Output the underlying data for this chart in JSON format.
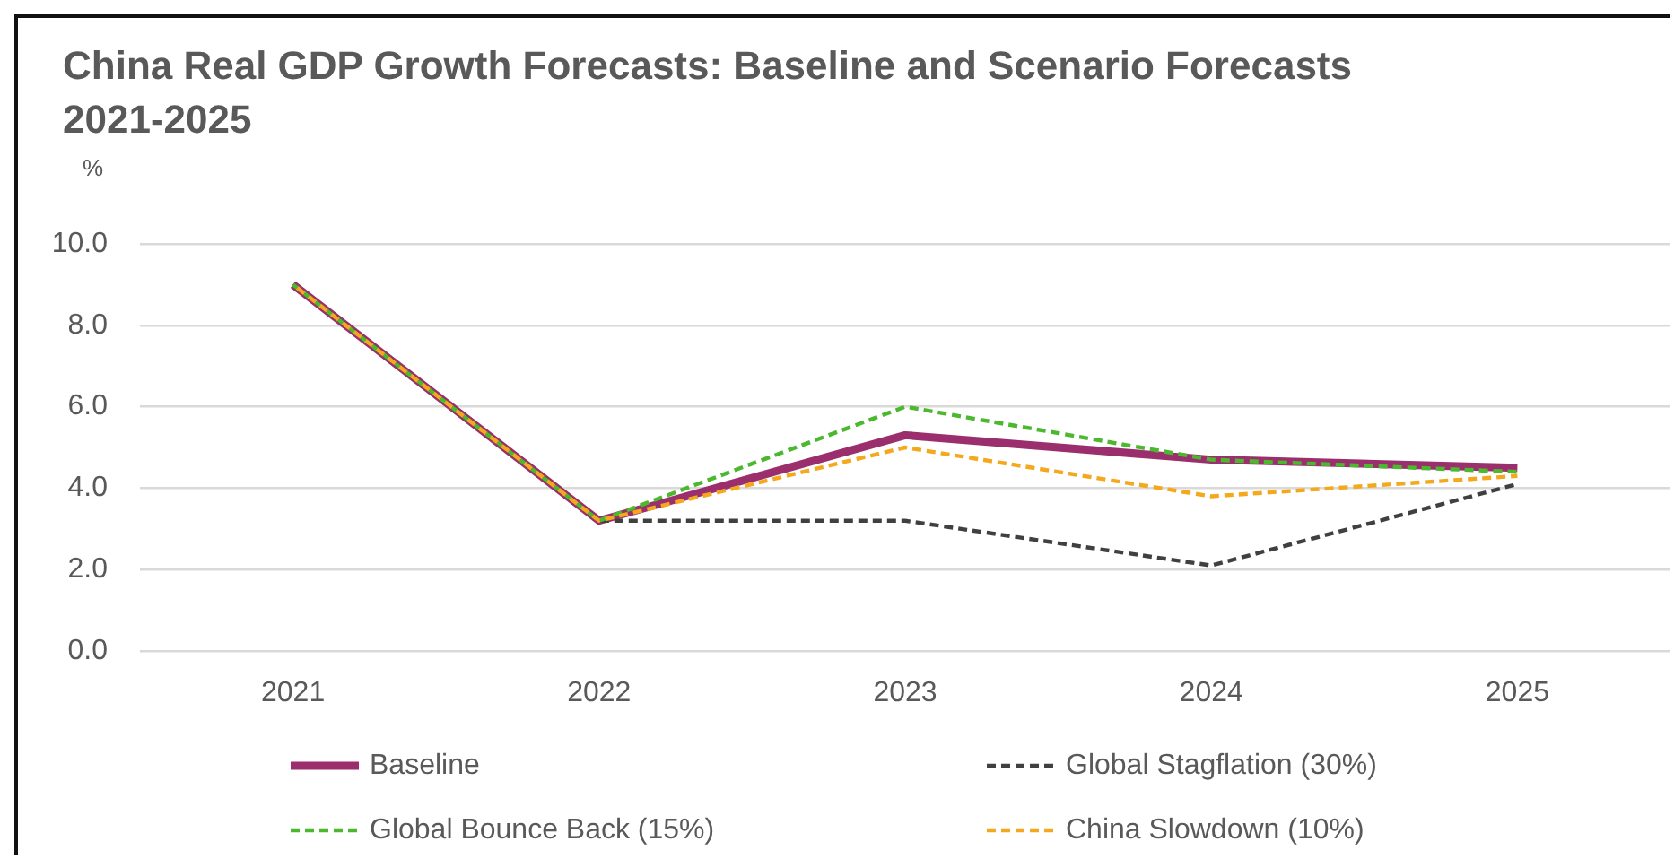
{
  "chart_data": {
    "type": "line",
    "title": "China Real GDP Growth Forecasts: Baseline and Scenario Forecasts 2021-2025",
    "ylabel": "%",
    "categories": [
      "2021",
      "2022",
      "2023",
      "2024",
      "2025"
    ],
    "series": [
      {
        "name": "Baseline",
        "color": "#9b2f6e",
        "line_style": "solid",
        "values": [
          9.0,
          3.2,
          5.3,
          4.7,
          4.5
        ]
      },
      {
        "name": "Global Stagflation (30%)",
        "color": "#404040",
        "line_style": "dashed",
        "values": [
          9.0,
          3.2,
          3.2,
          2.1,
          4.1
        ]
      },
      {
        "name": "Global Bounce Back (15%)",
        "color": "#4cb82e",
        "line_style": "dashed",
        "values": [
          9.0,
          3.2,
          6.0,
          4.7,
          4.4
        ]
      },
      {
        "name": "China Slowdown (10%)",
        "color": "#f4a81d",
        "line_style": "dashed",
        "values": [
          9.0,
          3.2,
          5.0,
          3.8,
          4.3
        ]
      }
    ],
    "ylim": [
      0,
      10
    ],
    "yticks": [
      {
        "value": 0,
        "label": "0.0"
      },
      {
        "value": 2,
        "label": "2.0"
      },
      {
        "value": 4,
        "label": "4.0"
      },
      {
        "value": 6,
        "label": "6.0"
      },
      {
        "value": 8,
        "label": "8.0"
      },
      {
        "value": 10,
        "label": "10.0"
      }
    ],
    "grid": "y",
    "legend": "bottom",
    "marker": "none"
  }
}
